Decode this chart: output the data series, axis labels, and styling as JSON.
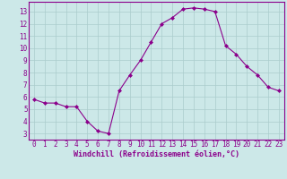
{
  "x": [
    0,
    1,
    2,
    3,
    4,
    5,
    6,
    7,
    8,
    9,
    10,
    11,
    12,
    13,
    14,
    15,
    16,
    17,
    18,
    19,
    20,
    21,
    22,
    23
  ],
  "y": [
    5.8,
    5.5,
    5.5,
    5.2,
    5.2,
    4.0,
    3.2,
    3.0,
    6.5,
    7.8,
    9.0,
    10.5,
    12.0,
    12.5,
    13.2,
    13.3,
    13.2,
    13.0,
    10.2,
    9.5,
    8.5,
    7.8,
    6.8,
    6.5
  ],
  "line_color": "#8B008B",
  "marker": "D",
  "marker_size": 2,
  "bg_color": "#cce8e8",
  "grid_color": "#aacccc",
  "xlabel": "Windchill (Refroidissement éolien,°C)",
  "xlabel_color": "#8B008B",
  "tick_color": "#8B008B",
  "spine_color": "#8B008B",
  "xlim": [
    -0.5,
    23.5
  ],
  "ylim": [
    2.5,
    13.8
  ],
  "yticks": [
    3,
    4,
    5,
    6,
    7,
    8,
    9,
    10,
    11,
    12,
    13
  ],
  "xticks": [
    0,
    1,
    2,
    3,
    4,
    5,
    6,
    7,
    8,
    9,
    10,
    11,
    12,
    13,
    14,
    15,
    16,
    17,
    18,
    19,
    20,
    21,
    22,
    23
  ],
  "tick_fontsize": 5.5,
  "xlabel_fontsize": 6.0
}
